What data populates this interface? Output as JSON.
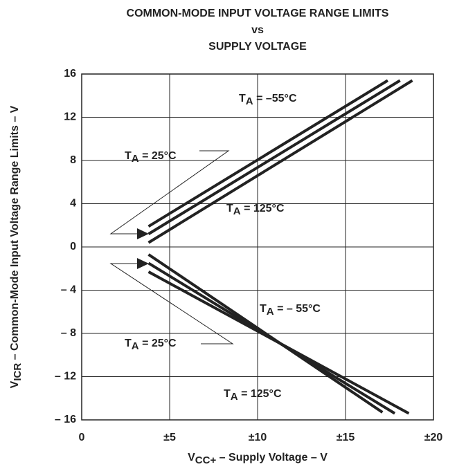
{
  "chart_data": {
    "type": "line",
    "title": [
      "COMMON-MODE INPUT VOLTAGE RANGE LIMITS",
      "vs",
      "SUPPLY VOLTAGE"
    ],
    "x_label": {
      "main": "V",
      "sub": "CC+",
      "rest": " – Supply Voltage – V"
    },
    "y_label": {
      "main": "V",
      "sub": "ICR",
      "rest": " – Common-Mode Input Voltage Range Limits – V"
    },
    "xlim": [
      0,
      20
    ],
    "ylim": [
      -16,
      16
    ],
    "xticks": [
      0,
      {
        "value": 5,
        "label": "±5"
      },
      {
        "value": 10,
        "label": "±10"
      },
      {
        "value": 15,
        "label": "±15"
      },
      {
        "value": 20,
        "label": "±20"
      }
    ],
    "yticks": [
      {
        "value": -16,
        "label": "– 16"
      },
      {
        "value": -12,
        "label": "– 12"
      },
      {
        "value": -8,
        "label": "– 8"
      },
      {
        "value": -4,
        "label": "– 4"
      },
      0,
      4,
      8,
      12,
      16
    ],
    "grid": true,
    "color": "#222222",
    "series": [
      {
        "x": [
          3.8,
          17.4
        ],
        "values": [
          1.9,
          15.4
        ]
      },
      {
        "x": [
          3.8,
          18.1
        ],
        "values": [
          1.2,
          15.4
        ]
      },
      {
        "x": [
          3.8,
          18.8
        ],
        "values": [
          0.4,
          15.4
        ]
      },
      {
        "x": [
          3.8,
          17.1
        ],
        "values": [
          -0.7,
          -15.3
        ]
      },
      {
        "x": [
          3.8,
          17.8
        ],
        "values": [
          -1.5,
          -15.4
        ]
      },
      {
        "x": [
          3.8,
          18.6
        ],
        "values": [
          -2.3,
          -15.4
        ]
      }
    ],
    "annotations": [
      {
        "main": "T",
        "sub": "A",
        "rest": " = –55°C"
      },
      {
        "main": "T",
        "sub": "A",
        "rest": " = 25°C"
      },
      {
        "main": "T",
        "sub": "A",
        "rest": " = 125°C"
      },
      {
        "main": "T",
        "sub": "A",
        "rest": " =  – 55°C"
      },
      {
        "main": "T",
        "sub": "A",
        "rest": " = 25°C"
      },
      {
        "main": "T",
        "sub": "A",
        "rest": " = 125°C"
      }
    ]
  }
}
